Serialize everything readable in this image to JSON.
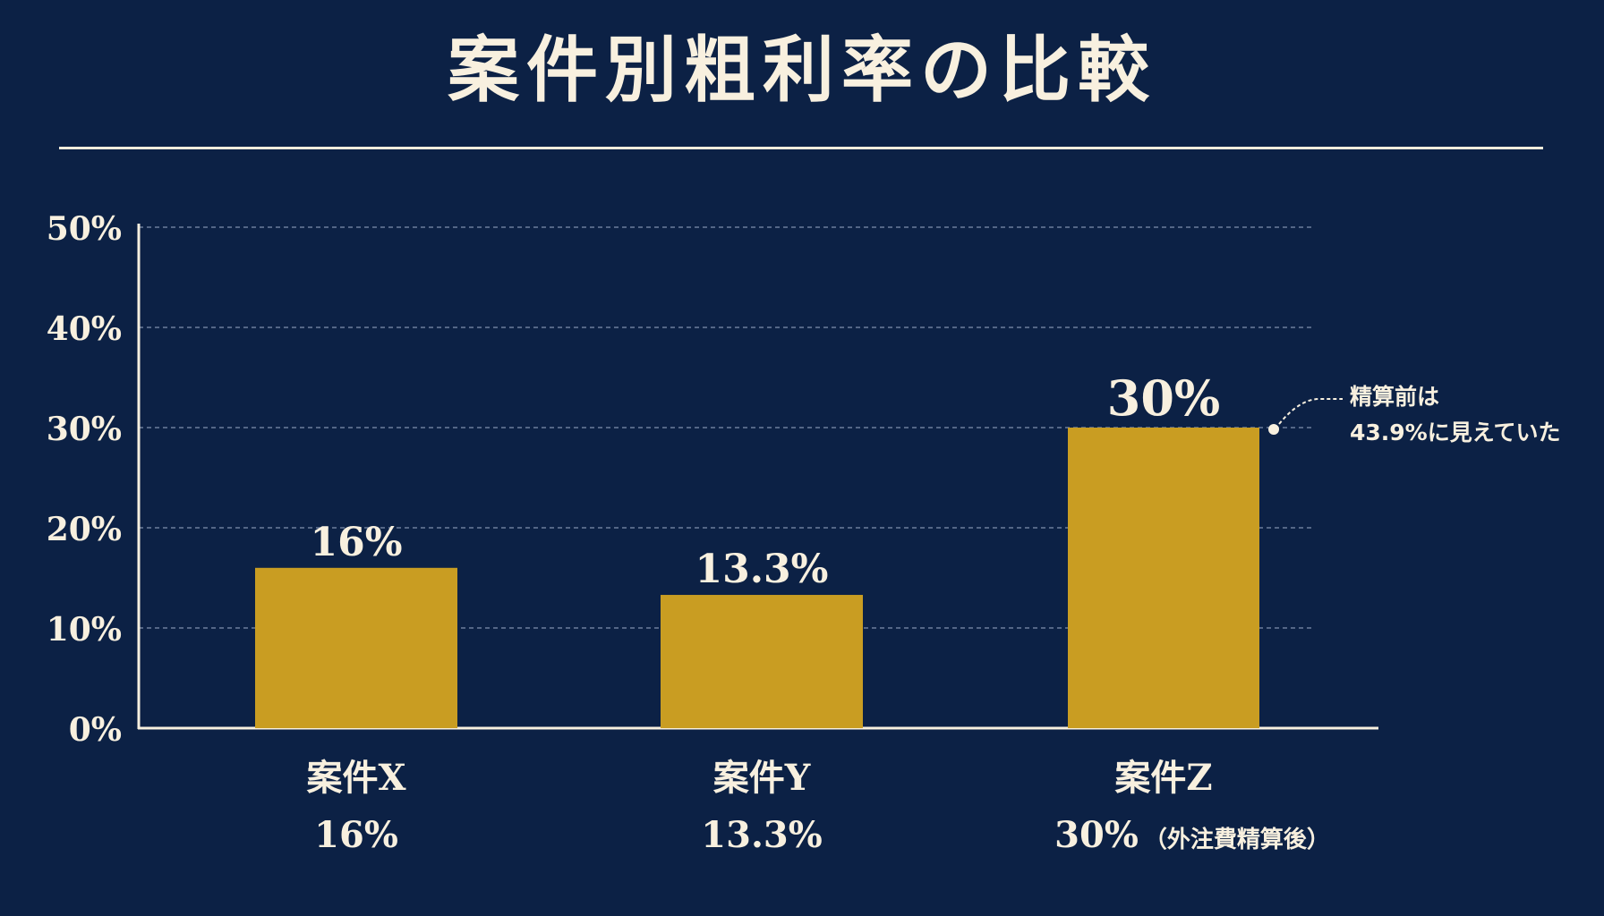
{
  "title": "案件別粗利率の比較",
  "colors": {
    "background": "#0c2145",
    "bar": "#c99d22",
    "text": "#f8f0df",
    "grid": "#7f8fae"
  },
  "chart_data": {
    "type": "bar",
    "categories": [
      "案件X",
      "案件Y",
      "案件Z"
    ],
    "values": [
      16,
      13.3,
      30
    ],
    "value_labels": [
      "16%",
      "13.3%",
      "30%"
    ],
    "category_sublabels": [
      "16%",
      "13.3%",
      "30%"
    ],
    "category_notes": [
      "",
      "",
      "（外注費精算後）"
    ],
    "ylim": [
      0,
      50
    ],
    "yticks": [
      0,
      10,
      20,
      30,
      40,
      50
    ],
    "ytick_labels": [
      "0%",
      "10%",
      "20%",
      "30%",
      "40%",
      "50%"
    ],
    "grid": true,
    "annotation": {
      "category": "案件Z",
      "line1": "精算前は",
      "line2": "43.9%に見えていた"
    }
  }
}
